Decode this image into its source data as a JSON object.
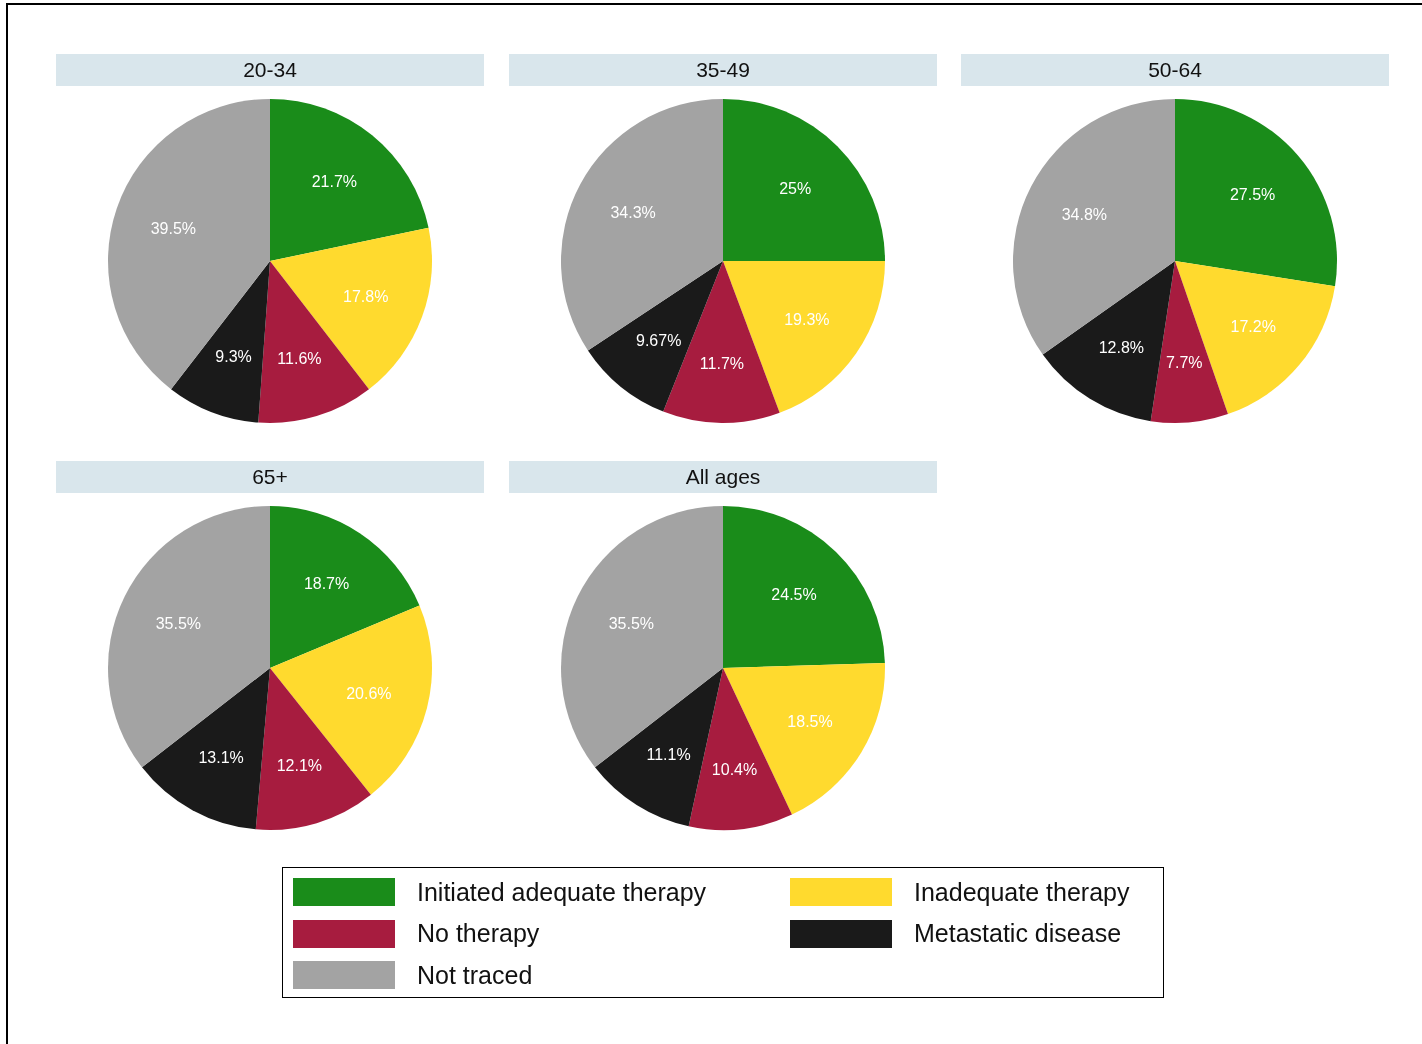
{
  "chart_data": [
    {
      "type": "pie",
      "title": "20-34",
      "categories": [
        "Initiated adequate therapy",
        "Inadequate therapy",
        "No therapy",
        "Metastatic disease",
        "Not traced"
      ],
      "values": [
        21.7,
        17.8,
        11.6,
        9.3,
        39.5
      ],
      "value_labels": [
        "21.7%",
        "17.8%",
        "11.6%",
        "9.3%",
        "39.5%"
      ],
      "colors": [
        "#1a8c1a",
        "#ffda2e",
        "#a71c3f",
        "#1a1a1a",
        "#a3a3a3"
      ],
      "legend": "bottom"
    },
    {
      "type": "pie",
      "title": "35-49",
      "categories": [
        null,
        null,
        null,
        null,
        null
      ],
      "values": [
        25,
        19.3,
        11.7,
        9.67,
        34.3
      ],
      "value_labels": [
        "25%",
        "19.3%",
        "11.7%",
        "9.67%",
        "34.3%"
      ],
      "colors": [
        "#1a8c1a",
        "#ffda2e",
        "#a71c3f",
        "#1a1a1a",
        "#a3a3a3"
      ]
    },
    {
      "type": "pie",
      "title": "50-64",
      "categories": [
        null,
        null,
        null,
        null,
        null
      ],
      "values": [
        27.5,
        17.2,
        7.7,
        12.8,
        34.8
      ],
      "value_labels": [
        "27.5%",
        "17.2%",
        "7.7%",
        "12.8%",
        "34.8%"
      ],
      "colors": [
        "#1a8c1a",
        "#ffda2e",
        "#a71c3f",
        "#1a1a1a",
        "#a3a3a3"
      ]
    },
    {
      "type": "pie",
      "title": "65+",
      "categories": [
        null,
        null,
        null,
        null,
        null
      ],
      "values": [
        18.7,
        20.6,
        12.1,
        13.1,
        35.5
      ],
      "value_labels": [
        "18.7%",
        "20.6%",
        "12.1%",
        "13.1%",
        "35.5%"
      ],
      "colors": [
        "#1a8c1a",
        "#ffda2e",
        "#a71c3f",
        "#1a1a1a",
        "#a3a3a3"
      ]
    },
    {
      "type": "pie",
      "title": "All ages",
      "categories": [
        null,
        null,
        null,
        null,
        null
      ],
      "values": [
        24.5,
        18.5,
        10.4,
        11.1,
        35.5
      ],
      "value_labels": [
        "24.5%",
        "18.5%",
        "10.4%",
        "11.1%",
        "35.5%"
      ],
      "colors": [
        "#1a8c1a",
        "#ffda2e",
        "#a71c3f",
        "#1a1a1a",
        "#a3a3a3"
      ]
    }
  ]
}
